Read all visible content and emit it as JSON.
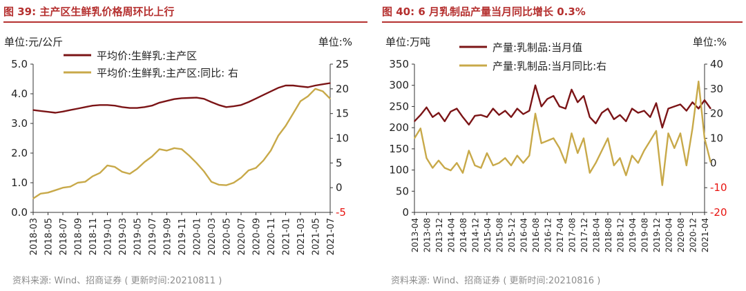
{
  "panels": [
    {
      "title": "图 39:  主产区生鲜乳价格周环比上行",
      "source": "资料来源:  Wind、招商证券 ( 更新时间:20210811 )"
    },
    {
      "title": "图 40:  6 月乳制品产量当月同比增长 0.3%",
      "source": "资料来源:  Wind、招商证券 ( 更新时间:20210816 )"
    }
  ],
  "chart_data": [
    {
      "type": "line",
      "left_unit": "单位:元/公斤",
      "right_unit": "单位:%",
      "ylim_left": [
        0.0,
        5.0
      ],
      "yticks_left": [
        "0.0",
        "1.0",
        "2.0",
        "3.0",
        "4.0",
        "5.0"
      ],
      "ylim_right": [
        -5,
        25
      ],
      "yticks_right": [
        "-5",
        "0",
        "5",
        "10",
        "15",
        "20",
        "25"
      ],
      "x_ticks": [
        "2018-03",
        "2018-05",
        "2018-07",
        "2018-09",
        "2018-11",
        "2019-01",
        "2019-03",
        "2019-05",
        "2019-07",
        "2019-09",
        "2019-11",
        "2020-01",
        "2020-03",
        "2020-05",
        "2020-07",
        "2020-09",
        "2020-11",
        "2021-01",
        "2021-03",
        "2021-05",
        "2021-07"
      ],
      "series": [
        {
          "name": "平均价:生鲜乳:主产区",
          "axis": "left",
          "color": "#7b1416",
          "points": [
            [
              "2018-03",
              3.45
            ],
            [
              "2018-04",
              3.42
            ],
            [
              "2018-05",
              3.39
            ],
            [
              "2018-06",
              3.36
            ],
            [
              "2018-07",
              3.4
            ],
            [
              "2018-08",
              3.45
            ],
            [
              "2018-09",
              3.5
            ],
            [
              "2018-10",
              3.55
            ],
            [
              "2018-11",
              3.6
            ],
            [
              "2018-12",
              3.62
            ],
            [
              "2019-01",
              3.62
            ],
            [
              "2019-02",
              3.6
            ],
            [
              "2019-03",
              3.55
            ],
            [
              "2019-04",
              3.52
            ],
            [
              "2019-05",
              3.52
            ],
            [
              "2019-06",
              3.55
            ],
            [
              "2019-07",
              3.6
            ],
            [
              "2019-08",
              3.7
            ],
            [
              "2019-09",
              3.76
            ],
            [
              "2019-10",
              3.82
            ],
            [
              "2019-11",
              3.85
            ],
            [
              "2019-12",
              3.86
            ],
            [
              "2020-01",
              3.87
            ],
            [
              "2020-02",
              3.83
            ],
            [
              "2020-03",
              3.72
            ],
            [
              "2020-04",
              3.62
            ],
            [
              "2020-05",
              3.55
            ],
            [
              "2020-06",
              3.58
            ],
            [
              "2020-07",
              3.62
            ],
            [
              "2020-08",
              3.72
            ],
            [
              "2020-09",
              3.84
            ],
            [
              "2020-10",
              3.96
            ],
            [
              "2020-11",
              4.08
            ],
            [
              "2020-12",
              4.2
            ],
            [
              "2021-01",
              4.28
            ],
            [
              "2021-02",
              4.28
            ],
            [
              "2021-03",
              4.25
            ],
            [
              "2021-04",
              4.22
            ],
            [
              "2021-05",
              4.28
            ],
            [
              "2021-06",
              4.32
            ],
            [
              "2021-07",
              4.36
            ]
          ]
        },
        {
          "name": "平均价:生鲜乳:主产区:同比:  右",
          "axis": "right",
          "color": "#c8a949",
          "points": [
            [
              "2018-03",
              -2.2
            ],
            [
              "2018-04",
              -1.2
            ],
            [
              "2018-05",
              -1.0
            ],
            [
              "2018-06",
              -0.5
            ],
            [
              "2018-07",
              0.0
            ],
            [
              "2018-08",
              0.2
            ],
            [
              "2018-09",
              1.0
            ],
            [
              "2018-10",
              1.2
            ],
            [
              "2018-11",
              2.3
            ],
            [
              "2018-12",
              3.0
            ],
            [
              "2019-01",
              4.5
            ],
            [
              "2019-02",
              4.2
            ],
            [
              "2019-03",
              3.2
            ],
            [
              "2019-04",
              2.8
            ],
            [
              "2019-05",
              3.8
            ],
            [
              "2019-06",
              5.2
            ],
            [
              "2019-07",
              6.3
            ],
            [
              "2019-08",
              7.8
            ],
            [
              "2019-09",
              7.5
            ],
            [
              "2019-10",
              8.0
            ],
            [
              "2019-11",
              7.8
            ],
            [
              "2019-12",
              6.5
            ],
            [
              "2020-01",
              5.0
            ],
            [
              "2020-02",
              3.3
            ],
            [
              "2020-03",
              1.2
            ],
            [
              "2020-04",
              0.6
            ],
            [
              "2020-05",
              0.5
            ],
            [
              "2020-06",
              1.0
            ],
            [
              "2020-07",
              2.0
            ],
            [
              "2020-08",
              3.5
            ],
            [
              "2020-09",
              4.0
            ],
            [
              "2020-10",
              5.5
            ],
            [
              "2020-11",
              7.5
            ],
            [
              "2020-12",
              10.5
            ],
            [
              "2021-01",
              12.5
            ],
            [
              "2021-02",
              15.0
            ],
            [
              "2021-03",
              17.5
            ],
            [
              "2021-04",
              18.5
            ],
            [
              "2021-05",
              20.0
            ],
            [
              "2021-06",
              19.5
            ],
            [
              "2021-07",
              18.0
            ]
          ]
        }
      ]
    },
    {
      "type": "line",
      "left_unit": "单位:万吨",
      "right_unit": "单位:%",
      "ylim_left": [
        0,
        350
      ],
      "yticks_left": [
        "0",
        "50",
        "100",
        "150",
        "200",
        "250",
        "300",
        "350"
      ],
      "ylim_right": [
        -20,
        40
      ],
      "yticks_right": [
        "-20",
        "-10",
        "0",
        "10",
        "20",
        "30",
        "40"
      ],
      "x_ticks": [
        "2013-04",
        "2013-08",
        "2013-12",
        "2014-04",
        "2014-08",
        "2014-12",
        "2015-04",
        "2015-08",
        "2015-12",
        "2016-04",
        "2016-08",
        "2016-12",
        "2017-04",
        "2017-08",
        "2017-12",
        "2018-04",
        "2018-08",
        "2018-12",
        "2019-04",
        "2019-08",
        "2019-12",
        "2020-04",
        "2020-08",
        "2020-12",
        "2021-04"
      ],
      "series": [
        {
          "name": "产量:乳制品:当月值",
          "axis": "left",
          "color": "#7b1416",
          "points": [
            [
              "2013-04",
              215
            ],
            [
              "2013-06",
              230
            ],
            [
              "2013-08",
              248
            ],
            [
              "2013-10",
              225
            ],
            [
              "2013-12",
              235
            ],
            [
              "2014-02",
              215
            ],
            [
              "2014-04",
              238
            ],
            [
              "2014-06",
              245
            ],
            [
              "2014-08",
              225
            ],
            [
              "2014-10",
              207
            ],
            [
              "2014-12",
              228
            ],
            [
              "2015-02",
              230
            ],
            [
              "2015-04",
              225
            ],
            [
              "2015-06",
              245
            ],
            [
              "2015-08",
              230
            ],
            [
              "2015-10",
              240
            ],
            [
              "2015-12",
              225
            ],
            [
              "2016-02",
              245
            ],
            [
              "2016-04",
              232
            ],
            [
              "2016-06",
              240
            ],
            [
              "2016-08",
              300
            ],
            [
              "2016-10",
              250
            ],
            [
              "2016-12",
              268
            ],
            [
              "2017-02",
              275
            ],
            [
              "2017-04",
              250
            ],
            [
              "2017-06",
              245
            ],
            [
              "2017-08",
              290
            ],
            [
              "2017-10",
              260
            ],
            [
              "2017-12",
              275
            ],
            [
              "2018-02",
              225
            ],
            [
              "2018-04",
              210
            ],
            [
              "2018-06",
              235
            ],
            [
              "2018-08",
              245
            ],
            [
              "2018-10",
              220
            ],
            [
              "2018-12",
              230
            ],
            [
              "2019-02",
              215
            ],
            [
              "2019-04",
              245
            ],
            [
              "2019-06",
              235
            ],
            [
              "2019-08",
              240
            ],
            [
              "2019-10",
              225
            ],
            [
              "2019-12",
              258
            ],
            [
              "2020-02",
              200
            ],
            [
              "2020-04",
              245
            ],
            [
              "2020-06",
              250
            ],
            [
              "2020-08",
              255
            ],
            [
              "2020-10",
              240
            ],
            [
              "2020-12",
              260
            ],
            [
              "2021-02",
              245
            ],
            [
              "2021-04",
              265
            ],
            [
              "2021-06",
              245
            ]
          ]
        },
        {
          "name": "产量:乳制品:当月同比:右",
          "axis": "right",
          "color": "#c8a949",
          "points": [
            [
              "2013-04",
              10
            ],
            [
              "2013-06",
              14
            ],
            [
              "2013-08",
              2
            ],
            [
              "2013-10",
              -2
            ],
            [
              "2013-12",
              1
            ],
            [
              "2014-02",
              -2
            ],
            [
              "2014-04",
              -3
            ],
            [
              "2014-06",
              0
            ],
            [
              "2014-08",
              -4
            ],
            [
              "2014-10",
              5
            ],
            [
              "2014-12",
              -1
            ],
            [
              "2015-02",
              -2
            ],
            [
              "2015-04",
              4
            ],
            [
              "2015-06",
              -1
            ],
            [
              "2015-08",
              0
            ],
            [
              "2015-10",
              2
            ],
            [
              "2015-12",
              -1
            ],
            [
              "2016-02",
              3
            ],
            [
              "2016-04",
              0
            ],
            [
              "2016-06",
              3
            ],
            [
              "2016-08",
              20
            ],
            [
              "2016-10",
              8
            ],
            [
              "2016-12",
              9
            ],
            [
              "2017-02",
              10
            ],
            [
              "2017-04",
              6
            ],
            [
              "2017-06",
              0
            ],
            [
              "2017-08",
              12
            ],
            [
              "2017-10",
              4
            ],
            [
              "2017-12",
              10
            ],
            [
              "2018-02",
              -4
            ],
            [
              "2018-04",
              0
            ],
            [
              "2018-06",
              5
            ],
            [
              "2018-08",
              10
            ],
            [
              "2018-10",
              -1
            ],
            [
              "2018-12",
              2
            ],
            [
              "2019-02",
              -5
            ],
            [
              "2019-04",
              3
            ],
            [
              "2019-06",
              0
            ],
            [
              "2019-08",
              5
            ],
            [
              "2019-10",
              9
            ],
            [
              "2019-12",
              13
            ],
            [
              "2020-02",
              -9
            ],
            [
              "2020-04",
              12
            ],
            [
              "2020-06",
              6
            ],
            [
              "2020-08",
              12
            ],
            [
              "2020-10",
              -1
            ],
            [
              "2020-12",
              14
            ],
            [
              "2021-02",
              33
            ],
            [
              "2021-04",
              10
            ],
            [
              "2021-06",
              0.3
            ]
          ]
        }
      ]
    }
  ]
}
